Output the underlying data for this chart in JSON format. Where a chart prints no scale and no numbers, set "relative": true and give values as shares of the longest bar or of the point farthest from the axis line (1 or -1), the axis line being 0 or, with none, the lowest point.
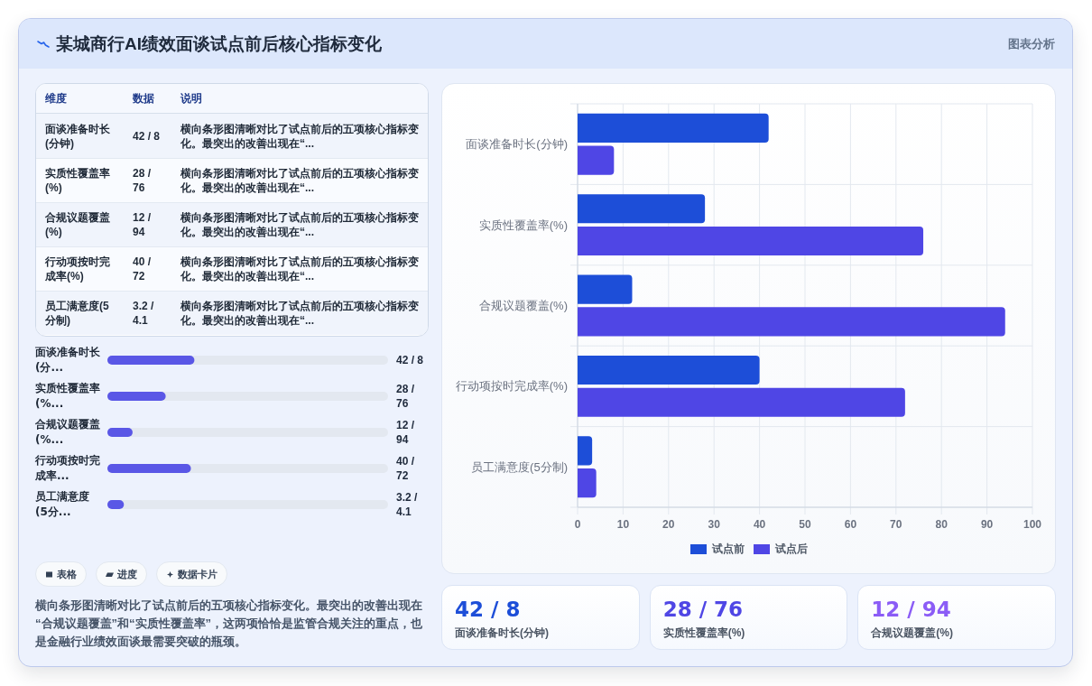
{
  "chart_data": [
    {
      "type": "other",
      "title": "某城商行AI绩效面谈试点前后核心指标变化",
      "annotations": [
        "图表分析"
      ]
    },
    {
      "type": "other",
      "categories": [
        "面谈准备时长(分钟)",
        "实质性覆盖率(%)",
        "合规议题覆盖(%)",
        "行动项按时完成率(%)",
        "员工满意度(5分制)"
      ],
      "value_labels": [
        "42 / 8",
        "28 / 76",
        "12 / 94",
        "40 / 72",
        "3.2 / 4.1"
      ],
      "annotations": [
        "维度",
        "数据",
        "说明",
        "横向条形图清晰对比了试点前后的五项核心指标变化。最突出的改善出现在“...",
        "横向条形图清晰对比了试点前后的五项核心指标变化。最突出的改善出现在“...",
        "横向条形图清晰对比了试点前后的五项核心指标变化。最突出的改善出现在“...",
        "横向条形图清晰对比了试点前后的五项核心指标变化。最突出的改善出现在“...",
        "横向条形图清晰对比了试点前后的五项核心指标变化。最突出的改善出现在“..."
      ]
    },
    {
      "type": "bar",
      "orientation": "horizontal",
      "relative": true,
      "categories": [
        "面谈准备时长(分...",
        "实质性覆盖率(%...",
        "合规议题覆盖(%...",
        "行动项按时完成率...",
        "员工满意度(5分..."
      ],
      "values": [
        1,
        0.67,
        0.29,
        0.96,
        0.19
      ],
      "annotations": [
        "42 / 8",
        "28 / 76",
        "12 / 94",
        "40 / 72",
        "3.2 / 4.1"
      ],
      "color": "#5a57e6"
    },
    {
      "type": "other",
      "annotations": [
        "表格",
        "进度",
        "数据卡片",
        "横向条形图清晰对比了试点前后的五项核心指标变化。最突出的改善出现在“合规议题覆盖”和“实质性覆盖率”，这两项恰恰是监管合规关注的重点，也是金融行业绩效面谈最需要突破的瓶颈。"
      ]
    },
    {
      "type": "bar",
      "orientation": "horizontal",
      "categories": [
        "面谈准备时长(分钟)",
        "实质性覆盖率(%)",
        "合规议题覆盖(%)",
        "行动项按时完成率(%)",
        "员工满意度(5分制)"
      ],
      "series": [
        {
          "name": "试点前",
          "color": "#1d4ed8",
          "values": [
            42,
            28,
            12,
            40,
            3.2
          ]
        },
        {
          "name": "试点后",
          "color": "#4f46e5",
          "values": [
            8,
            76,
            94,
            72,
            4.1
          ]
        }
      ],
      "xlim": [
        0,
        100
      ],
      "xticks": [
        0,
        10,
        20,
        30,
        40,
        50,
        60,
        70,
        80,
        90,
        100
      ],
      "grid": true,
      "legend": "bottom"
    },
    {
      "type": "other",
      "categories": [
        "面谈准备时长(分钟)",
        "实质性覆盖率(%)",
        "合规议题覆盖(%)"
      ],
      "value_labels": [
        "42 / 8",
        "28 / 76",
        "12 / 94"
      ]
    }
  ]
}
